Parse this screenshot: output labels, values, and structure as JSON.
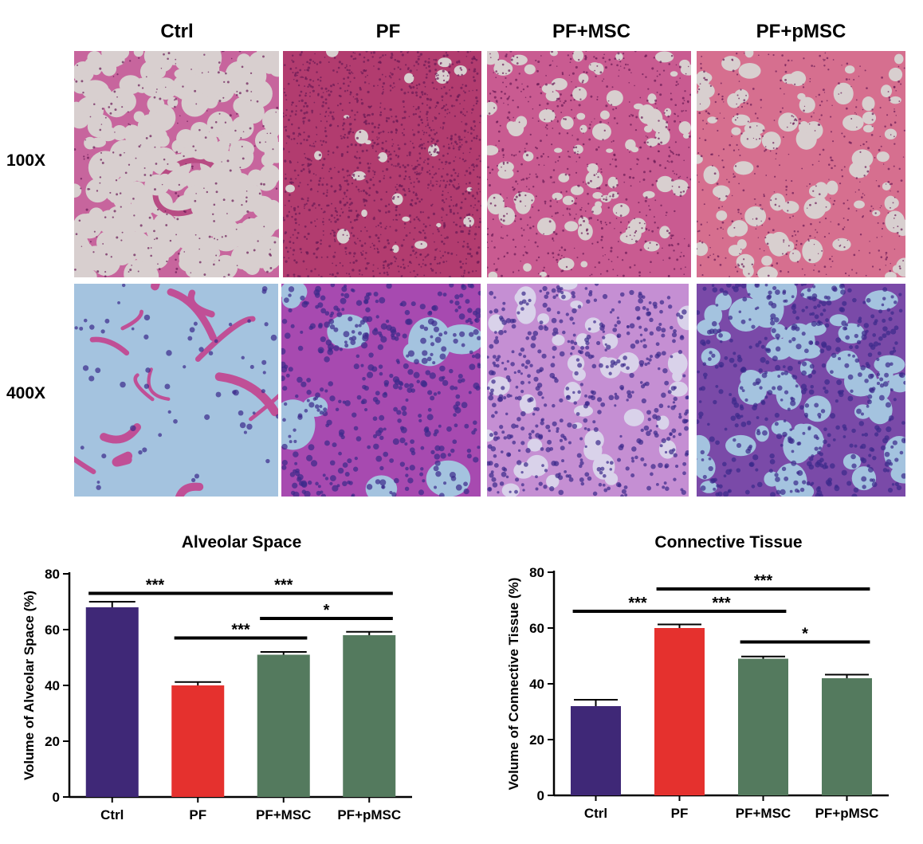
{
  "figure": {
    "columns": [
      "Ctrl",
      "PF",
      "PF+MSC",
      "PF+pMSC"
    ],
    "rows": [
      "100X",
      "400X"
    ]
  },
  "colors": {
    "ctrl": "#3f2877",
    "pf": "#e5312e",
    "msc": "#547a5e",
    "he_stroma_low": "#b8457e",
    "he_stroma_dense": "#a52758",
    "he_alveolar_low": "#d8cfcf",
    "he_alveolar_high": "#a4c3df"
  },
  "chart_data": [
    {
      "type": "bar",
      "title": "Alveolar Space",
      "ylabel": "Volume of Alveolar Space (%)",
      "xlabel": "",
      "categories": [
        "Ctrl",
        "PF",
        "PF+MSC",
        "PF+pMSC"
      ],
      "values": [
        68,
        40,
        51,
        58
      ],
      "errors": [
        2,
        1.2,
        1,
        1.2
      ],
      "colors": [
        "#3f2877",
        "#e5312e",
        "#547a5e",
        "#547a5e"
      ],
      "ylim": [
        0,
        80
      ],
      "yticks": [
        0,
        20,
        40,
        60,
        80
      ],
      "grid": false,
      "significance": [
        {
          "from": 0,
          "to": 1,
          "label": "***",
          "y": 73
        },
        {
          "from": 1,
          "to": 3,
          "label": "***",
          "y": 73
        },
        {
          "from": 2,
          "to": 3,
          "label": "*",
          "y": 64
        },
        {
          "from": 1,
          "to": 2,
          "label": "***",
          "y": 57
        }
      ]
    },
    {
      "type": "bar",
      "title": "Connective Tissue",
      "ylabel": "Volume of Connective Tissue (%)",
      "xlabel": "",
      "categories": [
        "Ctrl",
        "PF",
        "PF+MSC",
        "PF+pMSC"
      ],
      "values": [
        32,
        60,
        49,
        42
      ],
      "errors": [
        2.3,
        1.3,
        0.8,
        1.3
      ],
      "colors": [
        "#3f2877",
        "#e5312e",
        "#547a5e",
        "#547a5e"
      ],
      "ylim": [
        0,
        80
      ],
      "yticks": [
        0,
        20,
        40,
        60,
        80
      ],
      "grid": false,
      "significance": [
        {
          "from": 1,
          "to": 3,
          "label": "***",
          "y": 74
        },
        {
          "from": 0,
          "to": 1,
          "label": "***",
          "y": 66
        },
        {
          "from": 1,
          "to": 2,
          "label": "***",
          "y": 66
        },
        {
          "from": 2,
          "to": 3,
          "label": "*",
          "y": 55
        }
      ]
    }
  ]
}
